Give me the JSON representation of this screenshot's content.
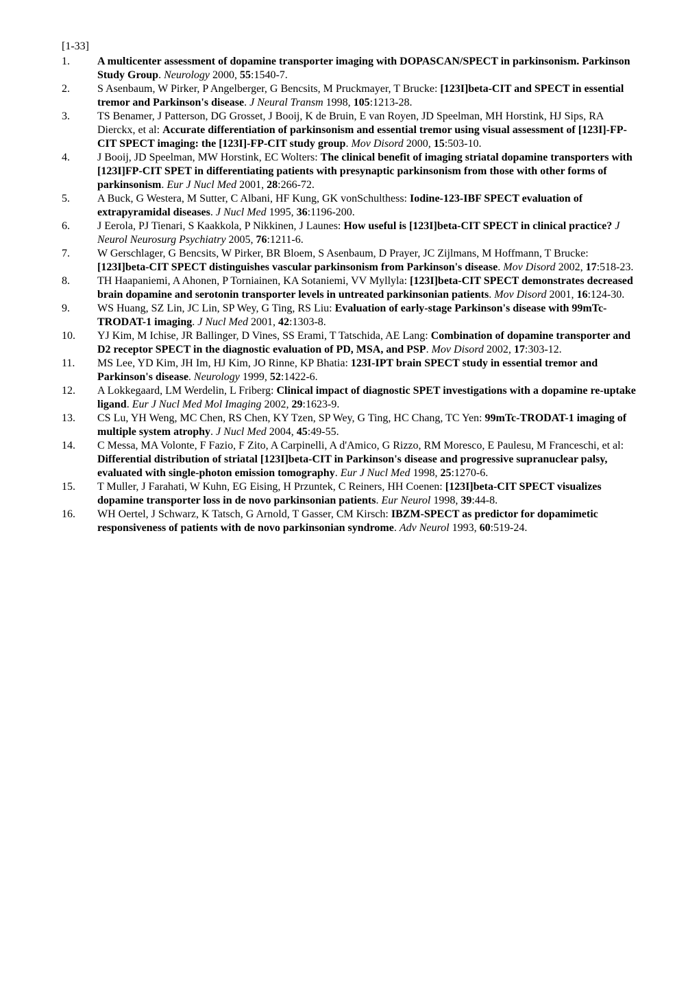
{
  "range_label": "[1-33]",
  "references": [
    {
      "num": "1.",
      "segments": [
        {
          "t": "A multicenter assessment of dopamine transporter imaging with DOPASCAN/SPECT in parkinsonism. Parkinson Study Group",
          "b": true
        },
        {
          "t": ". "
        },
        {
          "t": "Neurology",
          "i": true
        },
        {
          "t": " 2000, "
        },
        {
          "t": "55",
          "b": true
        },
        {
          "t": ":1540-7."
        }
      ]
    },
    {
      "num": "2.",
      "segments": [
        {
          "t": "S Asenbaum, W Pirker, P Angelberger, G Bencsits, M Pruckmayer, T Brucke: "
        },
        {
          "t": "[123I]beta-CIT and SPECT in essential tremor and Parkinson's disease",
          "b": true
        },
        {
          "t": ". "
        },
        {
          "t": "J Neural Transm",
          "i": true
        },
        {
          "t": " 1998, "
        },
        {
          "t": "105",
          "b": true
        },
        {
          "t": ":1213-28."
        }
      ]
    },
    {
      "num": "3.",
      "segments": [
        {
          "t": "TS Benamer, J Patterson, DG Grosset, J Booij, K de Bruin, E van Royen, JD Speelman, MH Horstink, HJ Sips, RA Dierckx, et al: "
        },
        {
          "t": "Accurate differentiation of parkinsonism and essential tremor using visual assessment of [123I]-FP-CIT SPECT imaging: the [123I]-FP-CIT study group",
          "b": true
        },
        {
          "t": ". "
        },
        {
          "t": "Mov Disord",
          "i": true
        },
        {
          "t": " 2000, "
        },
        {
          "t": "15",
          "b": true
        },
        {
          "t": ":503-10."
        }
      ]
    },
    {
      "num": "4.",
      "segments": [
        {
          "t": "J Booij, JD Speelman, MW Horstink, EC Wolters: "
        },
        {
          "t": "The clinical benefit of imaging striatal dopamine transporters with [123I]FP-CIT SPET in differentiating patients with presynaptic parkinsonism from those with other forms of parkinsonism",
          "b": true
        },
        {
          "t": ". "
        },
        {
          "t": "Eur J Nucl Med",
          "i": true
        },
        {
          "t": " 2001, "
        },
        {
          "t": "28",
          "b": true
        },
        {
          "t": ":266-72."
        }
      ]
    },
    {
      "num": "5.",
      "segments": [
        {
          "t": "A Buck, G Westera, M Sutter, C Albani, HF Kung, GK vonSchulthess: "
        },
        {
          "t": "Iodine-123-IBF SPECT evaluation of extrapyramidal diseases",
          "b": true
        },
        {
          "t": ". "
        },
        {
          "t": "J Nucl Med",
          "i": true
        },
        {
          "t": " 1995, "
        },
        {
          "t": "36",
          "b": true
        },
        {
          "t": ":1196-200."
        }
      ]
    },
    {
      "num": "6.",
      "segments": [
        {
          "t": "J Eerola, PJ Tienari, S Kaakkola, P Nikkinen, J Launes: "
        },
        {
          "t": "How useful is [123I]beta-CIT SPECT in clinical practice?",
          "b": true
        },
        {
          "t": " "
        },
        {
          "t": "J Neurol Neurosurg Psychiatry",
          "i": true
        },
        {
          "t": " 2005, "
        },
        {
          "t": "76",
          "b": true
        },
        {
          "t": ":1211-6."
        }
      ]
    },
    {
      "num": "7.",
      "segments": [
        {
          "t": "W Gerschlager, G Bencsits, W Pirker, BR Bloem, S Asenbaum, D Prayer, JC Zijlmans, M Hoffmann, T Brucke: "
        },
        {
          "t": "[123I]beta-CIT SPECT distinguishes vascular parkinsonism from Parkinson's disease",
          "b": true
        },
        {
          "t": ". "
        },
        {
          "t": "Mov Disord",
          "i": true
        },
        {
          "t": " 2002, "
        },
        {
          "t": "17",
          "b": true
        },
        {
          "t": ":518-23."
        }
      ]
    },
    {
      "num": "8.",
      "segments": [
        {
          "t": "TH Haapaniemi, A Ahonen, P Torniainen, KA Sotaniemi, VV Myllyla: "
        },
        {
          "t": "[123I]beta-CIT SPECT demonstrates decreased brain dopamine and serotonin transporter levels in untreated parkinsonian patients",
          "b": true
        },
        {
          "t": ". "
        },
        {
          "t": "Mov Disord",
          "i": true
        },
        {
          "t": " 2001, "
        },
        {
          "t": "16",
          "b": true
        },
        {
          "t": ":124-30."
        }
      ]
    },
    {
      "num": "9.",
      "segments": [
        {
          "t": "WS Huang, SZ Lin, JC Lin, SP Wey, G Ting, RS Liu: "
        },
        {
          "t": "Evaluation of early-stage Parkinson's disease with 99mTc-TRODAT-1 imaging",
          "b": true
        },
        {
          "t": ". "
        },
        {
          "t": "J Nucl Med",
          "i": true
        },
        {
          "t": " 2001, "
        },
        {
          "t": "42",
          "b": true
        },
        {
          "t": ":1303-8."
        }
      ]
    },
    {
      "num": "10.",
      "segments": [
        {
          "t": "YJ Kim, M Ichise, JR Ballinger, D Vines, SS Erami, T Tatschida, AE Lang: "
        },
        {
          "t": "Combination of dopamine transporter and D2 receptor SPECT in the diagnostic evaluation of PD, MSA, and PSP",
          "b": true
        },
        {
          "t": ". "
        },
        {
          "t": "Mov Disord",
          "i": true
        },
        {
          "t": " 2002, "
        },
        {
          "t": "17",
          "b": true
        },
        {
          "t": ":303-12."
        }
      ]
    },
    {
      "num": "11.",
      "segments": [
        {
          "t": "MS Lee, YD Kim, JH Im, HJ Kim, JO Rinne, KP Bhatia: "
        },
        {
          "t": "123I-IPT brain SPECT study in essential tremor and Parkinson's disease",
          "b": true
        },
        {
          "t": ". "
        },
        {
          "t": "Neurology",
          "i": true
        },
        {
          "t": " 1999, "
        },
        {
          "t": "52",
          "b": true
        },
        {
          "t": ":1422-6."
        }
      ]
    },
    {
      "num": "12.",
      "segments": [
        {
          "t": "A Lokkegaard, LM Werdelin, L Friberg: "
        },
        {
          "t": "Clinical impact of diagnostic SPET investigations with a dopamine re-uptake ligand",
          "b": true
        },
        {
          "t": ". "
        },
        {
          "t": "Eur J Nucl Med Mol Imaging",
          "i": true
        },
        {
          "t": " 2002, "
        },
        {
          "t": "29",
          "b": true
        },
        {
          "t": ":1623-9."
        }
      ]
    },
    {
      "num": "13.",
      "segments": [
        {
          "t": "CS Lu, YH Weng, MC Chen, RS Chen, KY Tzen, SP Wey, G Ting, HC Chang, TC Yen: "
        },
        {
          "t": "99mTc-TRODAT-1 imaging of multiple system atrophy",
          "b": true
        },
        {
          "t": ". "
        },
        {
          "t": "J Nucl Med",
          "i": true
        },
        {
          "t": " 2004, "
        },
        {
          "t": "45",
          "b": true
        },
        {
          "t": ":49-55."
        }
      ]
    },
    {
      "num": "14.",
      "segments": [
        {
          "t": "C Messa, MA Volonte, F Fazio, F Zito, A Carpinelli, A d'Amico, G Rizzo, RM Moresco, E Paulesu, M Franceschi, et al: "
        },
        {
          "t": "Differential distribution of striatal [123I]beta-CIT in Parkinson's disease and progressive supranuclear palsy, evaluated with single-photon emission tomography",
          "b": true
        },
        {
          "t": ". "
        },
        {
          "t": "Eur J Nucl Med",
          "i": true
        },
        {
          "t": " 1998, "
        },
        {
          "t": "25",
          "b": true
        },
        {
          "t": ":1270-6."
        }
      ]
    },
    {
      "num": "15.",
      "segments": [
        {
          "t": "T Muller, J Farahati, W Kuhn, EG Eising, H Przuntek, C Reiners, HH Coenen: "
        },
        {
          "t": "[123I]beta-CIT SPECT visualizes dopamine transporter loss in de novo parkinsonian patients",
          "b": true
        },
        {
          "t": ". "
        },
        {
          "t": "Eur Neurol",
          "i": true
        },
        {
          "t": " 1998, "
        },
        {
          "t": "39",
          "b": true
        },
        {
          "t": ":44-8."
        }
      ]
    },
    {
      "num": "16.",
      "segments": [
        {
          "t": "WH Oertel, J Schwarz, K Tatsch, G Arnold, T Gasser, CM Kirsch: "
        },
        {
          "t": "IBZM-SPECT as predictor for dopamimetic responsiveness of patients with de novo parkinsonian syndrome",
          "b": true
        },
        {
          "t": ". "
        },
        {
          "t": "Adv Neurol",
          "i": true
        },
        {
          "t": " 1993, "
        },
        {
          "t": "60",
          "b": true
        },
        {
          "t": ":519-24."
        }
      ]
    }
  ]
}
